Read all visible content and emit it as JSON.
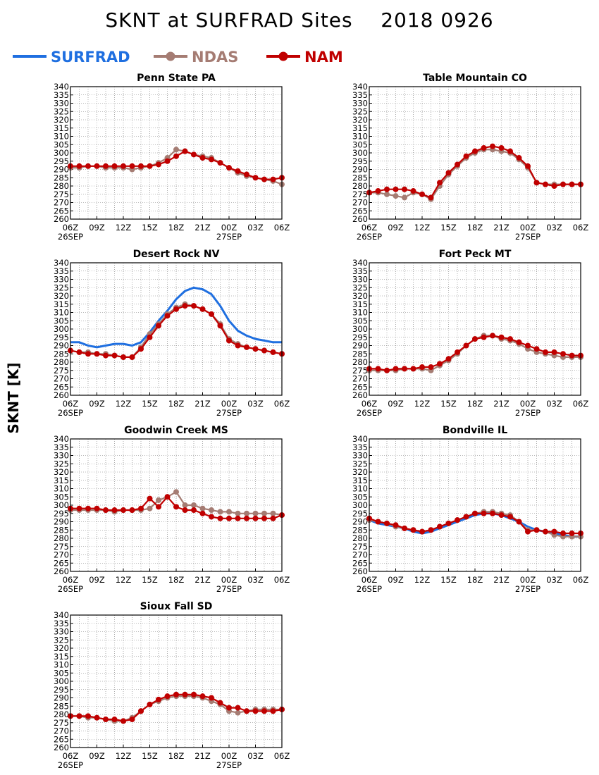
{
  "title": "SKNT at SURFRAD Sites    2018 0926",
  "ylabel": "SKNT [K]",
  "legend": [
    {
      "name": "SURFRAD",
      "color": "#1f6fe0",
      "marker": false
    },
    {
      "name": "NDAS",
      "color": "#a57c73",
      "marker": true
    },
    {
      "name": "NAM",
      "color": "#c00000",
      "marker": true
    }
  ],
  "chart_data": [
    {
      "type": "line",
      "title": "Penn State PA",
      "x": [
        0,
        1,
        2,
        3,
        4,
        5,
        6,
        7,
        8,
        9,
        10,
        11,
        12,
        13,
        14,
        15,
        16,
        17,
        18,
        19,
        20,
        21,
        22,
        23,
        24
      ],
      "x_ticks": [
        "06Z",
        "09Z",
        "12Z",
        "15Z",
        "18Z",
        "21Z",
        "00Z",
        "03Z",
        "06Z"
      ],
      "x_dates": [
        "26SEP",
        "27SEP"
      ],
      "ylim": [
        260,
        340
      ],
      "y_step": 5,
      "series": [
        {
          "name": "NDAS",
          "values": [
            291,
            291,
            292,
            292,
            291,
            291,
            291,
            290,
            291,
            292,
            294,
            297,
            302,
            301,
            299,
            298,
            297,
            294,
            291,
            288,
            286,
            285,
            284,
            283,
            281
          ]
        },
        {
          "name": "NAM",
          "values": [
            292,
            292,
            292,
            292,
            292,
            292,
            292,
            292,
            292,
            292,
            293,
            295,
            298,
            301,
            299,
            297,
            296,
            294,
            291,
            289,
            287,
            285,
            284,
            284,
            285
          ]
        }
      ]
    },
    {
      "type": "line",
      "title": "Table Mountain CO",
      "x": [
        0,
        1,
        2,
        3,
        4,
        5,
        6,
        7,
        8,
        9,
        10,
        11,
        12,
        13,
        14,
        15,
        16,
        17,
        18,
        19,
        20,
        21,
        22,
        23,
        24
      ],
      "x_ticks": [
        "06Z",
        "09Z",
        "12Z",
        "15Z",
        "18Z",
        "21Z",
        "00Z",
        "03Z",
        "06Z"
      ],
      "x_dates": [
        "26SEP",
        "27SEP"
      ],
      "ylim": [
        260,
        340
      ],
      "y_step": 5,
      "series": [
        {
          "name": "NDAS",
          "values": [
            276,
            276,
            275,
            274,
            273,
            276,
            275,
            272,
            280,
            287,
            292,
            297,
            300,
            302,
            302,
            301,
            300,
            296,
            291,
            282,
            281,
            281,
            281,
            281,
            281
          ]
        },
        {
          "name": "NAM",
          "values": [
            276,
            277,
            278,
            278,
            278,
            277,
            275,
            273,
            282,
            288,
            293,
            298,
            301,
            303,
            304,
            303,
            301,
            297,
            292,
            282,
            281,
            280,
            281,
            281,
            281
          ]
        }
      ]
    },
    {
      "type": "line",
      "title": "Desert Rock NV",
      "x": [
        0,
        1,
        2,
        3,
        4,
        5,
        6,
        7,
        8,
        9,
        10,
        11,
        12,
        13,
        14,
        15,
        16,
        17,
        18,
        19,
        20,
        21,
        22,
        23,
        24
      ],
      "x_ticks": [
        "06Z",
        "09Z",
        "12Z",
        "15Z",
        "18Z",
        "21Z",
        "00Z",
        "03Z",
        "06Z"
      ],
      "x_dates": [
        "26SEP",
        "27SEP"
      ],
      "ylim": [
        260,
        340
      ],
      "y_step": 5,
      "series": [
        {
          "name": "SURFRAD",
          "values": [
            292,
            292,
            290,
            289,
            290,
            291,
            291,
            290,
            292,
            298,
            305,
            311,
            318,
            323,
            325,
            324,
            321,
            314,
            305,
            299,
            296,
            294,
            293,
            292,
            292
          ]
        },
        {
          "name": "NDAS",
          "values": [
            287,
            286,
            286,
            285,
            285,
            284,
            283,
            283,
            289,
            297,
            303,
            309,
            313,
            315,
            314,
            312,
            309,
            303,
            294,
            291,
            289,
            288,
            287,
            286,
            285
          ]
        },
        {
          "name": "NAM",
          "values": [
            287,
            286,
            285,
            285,
            284,
            284,
            283,
            283,
            288,
            295,
            302,
            308,
            312,
            314,
            314,
            312,
            309,
            302,
            293,
            290,
            289,
            288,
            287,
            286,
            285
          ]
        }
      ]
    },
    {
      "type": "line",
      "title": "Fort Peck MT",
      "x": [
        0,
        1,
        2,
        3,
        4,
        5,
        6,
        7,
        8,
        9,
        10,
        11,
        12,
        13,
        14,
        15,
        16,
        17,
        18,
        19,
        20,
        21,
        22,
        23,
        24
      ],
      "x_ticks": [
        "06Z",
        "09Z",
        "12Z",
        "15Z",
        "18Z",
        "21Z",
        "00Z",
        "03Z",
        "06Z"
      ],
      "x_dates": [
        "26SEP",
        "27SEP"
      ],
      "ylim": [
        260,
        340
      ],
      "y_step": 5,
      "series": [
        {
          "name": "NDAS",
          "values": [
            275,
            275,
            275,
            275,
            276,
            276,
            276,
            275,
            278,
            281,
            285,
            290,
            294,
            296,
            296,
            294,
            293,
            291,
            288,
            286,
            285,
            284,
            283,
            283,
            283
          ]
        },
        {
          "name": "NAM",
          "values": [
            276,
            276,
            275,
            276,
            276,
            276,
            277,
            277,
            279,
            282,
            286,
            290,
            294,
            295,
            296,
            295,
            294,
            292,
            290,
            288,
            286,
            286,
            285,
            284,
            284
          ]
        }
      ]
    },
    {
      "type": "line",
      "title": "Goodwin Creek MS",
      "x": [
        0,
        1,
        2,
        3,
        4,
        5,
        6,
        7,
        8,
        9,
        10,
        11,
        12,
        13,
        14,
        15,
        16,
        17,
        18,
        19,
        20,
        21,
        22,
        23,
        24
      ],
      "x_ticks": [
        "06Z",
        "09Z",
        "12Z",
        "15Z",
        "18Z",
        "21Z",
        "00Z",
        "03Z",
        "06Z"
      ],
      "x_dates": [
        "26SEP",
        "27SEP"
      ],
      "ylim": [
        260,
        340
      ],
      "y_step": 5,
      "series": [
        {
          "name": "NDAS",
          "values": [
            297,
            297,
            297,
            297,
            297,
            296,
            297,
            297,
            297,
            298,
            303,
            305,
            308,
            300,
            300,
            298,
            297,
            296,
            296,
            295,
            295,
            295,
            295,
            295,
            294
          ]
        },
        {
          "name": "NAM",
          "values": [
            298,
            298,
            298,
            298,
            297,
            297,
            297,
            297,
            298,
            304,
            299,
            305,
            299,
            297,
            297,
            295,
            293,
            292,
            292,
            292,
            292,
            292,
            292,
            292,
            294
          ]
        }
      ]
    },
    {
      "type": "line",
      "title": "Bondville IL",
      "x": [
        0,
        1,
        2,
        3,
        4,
        5,
        6,
        7,
        8,
        9,
        10,
        11,
        12,
        13,
        14,
        15,
        16,
        17,
        18,
        19,
        20,
        21,
        22,
        23,
        24
      ],
      "x_ticks": [
        "06Z",
        "09Z",
        "12Z",
        "15Z",
        "18Z",
        "21Z",
        "00Z",
        "03Z",
        "06Z"
      ],
      "x_dates": [
        "26SEP",
        "27SEP"
      ],
      "ylim": [
        260,
        340
      ],
      "y_step": 5,
      "series": [
        {
          "name": "SURFRAD",
          "values": [
            291,
            289,
            288,
            287,
            286,
            284,
            283,
            284,
            286,
            288,
            290,
            292,
            294,
            295,
            295,
            294,
            292,
            290,
            287,
            285,
            284,
            283,
            282,
            281,
            281
          ]
        },
        {
          "name": "NDAS",
          "values": [
            291,
            290,
            289,
            287,
            286,
            285,
            284,
            285,
            287,
            289,
            291,
            293,
            295,
            296,
            296,
            295,
            294,
            290,
            285,
            285,
            284,
            282,
            281,
            281,
            281
          ]
        },
        {
          "name": "NAM",
          "values": [
            292,
            290,
            289,
            288,
            286,
            285,
            284,
            285,
            287,
            289,
            291,
            293,
            295,
            295,
            295,
            294,
            293,
            290,
            284,
            285,
            284,
            284,
            283,
            283,
            283
          ]
        }
      ]
    },
    {
      "type": "line",
      "title": "Sioux Fall SD",
      "x": [
        0,
        1,
        2,
        3,
        4,
        5,
        6,
        7,
        8,
        9,
        10,
        11,
        12,
        13,
        14,
        15,
        16,
        17,
        18,
        19,
        20,
        21,
        22,
        23,
        24
      ],
      "x_ticks": [
        "06Z",
        "09Z",
        "12Z",
        "15Z",
        "18Z",
        "21Z",
        "00Z",
        "03Z",
        "06Z"
      ],
      "x_dates": [
        "26SEP",
        "27SEP"
      ],
      "ylim": [
        260,
        340
      ],
      "y_step": 5,
      "series": [
        {
          "name": "NDAS",
          "values": [
            279,
            279,
            278,
            278,
            277,
            276,
            276,
            278,
            282,
            286,
            288,
            290,
            291,
            291,
            291,
            290,
            288,
            286,
            282,
            281,
            282,
            283,
            283,
            283,
            283
          ]
        },
        {
          "name": "NAM",
          "values": [
            279,
            279,
            279,
            278,
            277,
            277,
            276,
            277,
            282,
            286,
            289,
            291,
            292,
            292,
            292,
            291,
            290,
            287,
            284,
            284,
            282,
            282,
            282,
            282,
            283
          ]
        }
      ]
    }
  ]
}
